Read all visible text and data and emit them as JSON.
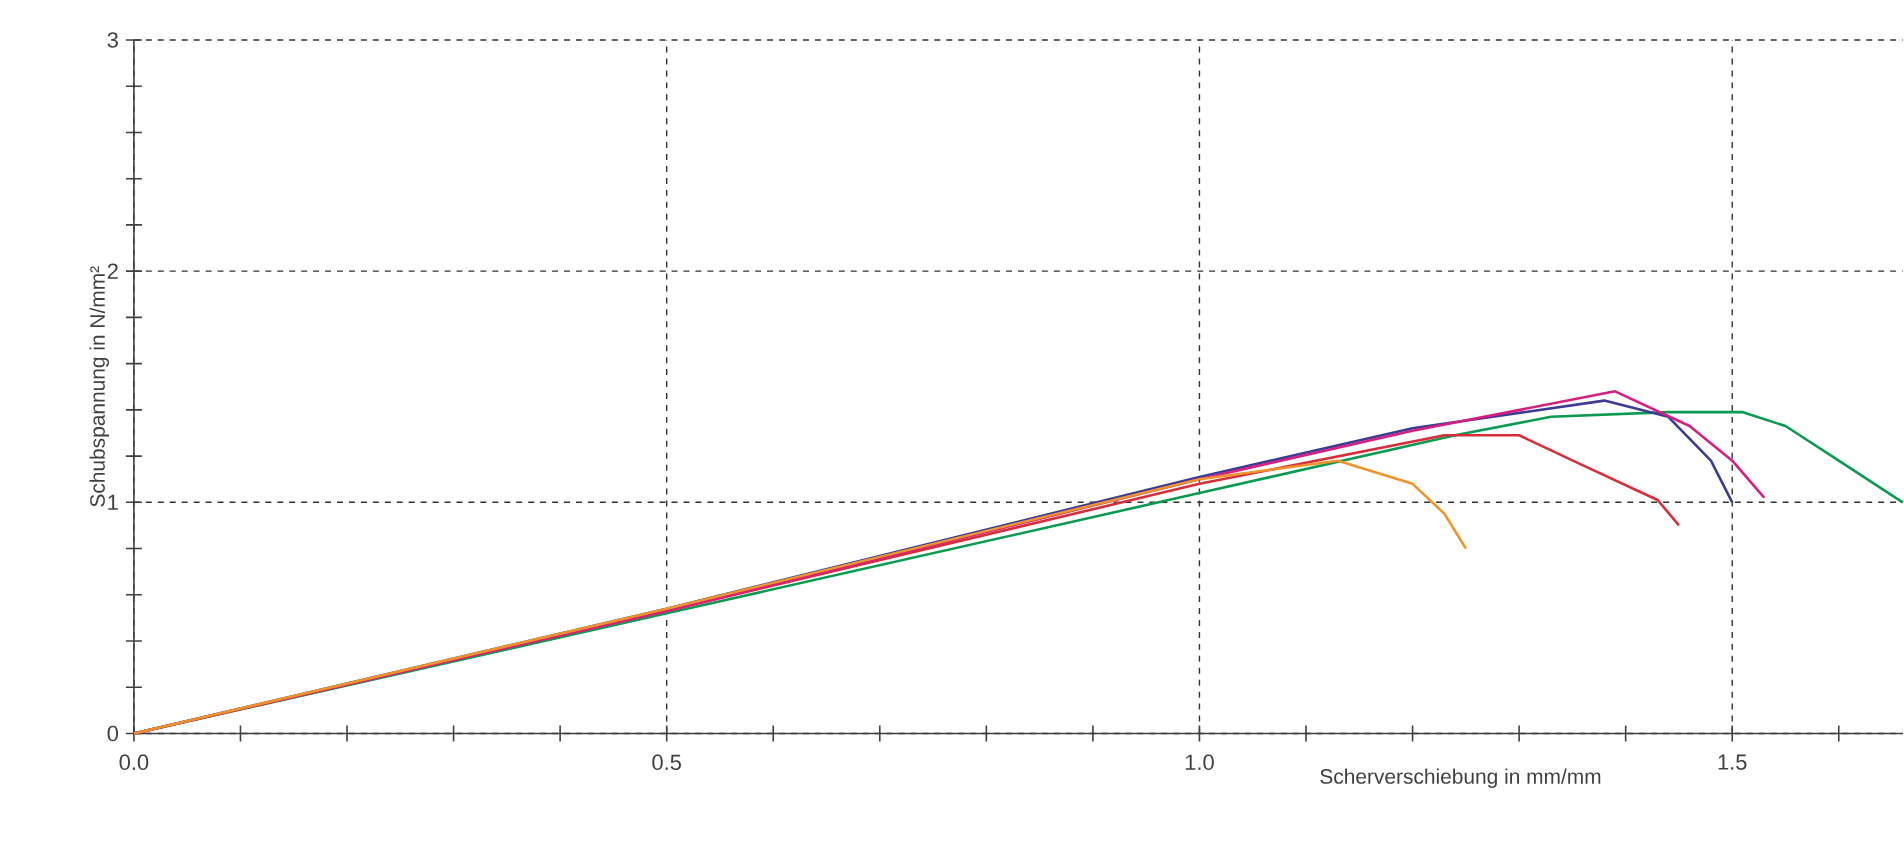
{
  "chart_data": {
    "type": "line",
    "xlabel": "Scherverschiebung in mm/mm",
    "ylabel": "Schubspannung in N/mm²",
    "xlim": [
      0,
      1.66
    ],
    "ylim": [
      0,
      3
    ],
    "xticks": [
      {
        "value": 0,
        "label": "0.0"
      },
      {
        "value": 0.1,
        "label": null
      },
      {
        "value": 0.2,
        "label": null
      },
      {
        "value": 0.3,
        "label": null
      },
      {
        "value": 0.4,
        "label": null
      },
      {
        "value": 0.5,
        "label": "0.5"
      },
      {
        "value": 0.6,
        "label": null
      },
      {
        "value": 0.7,
        "label": null
      },
      {
        "value": 0.8,
        "label": null
      },
      {
        "value": 0.9,
        "label": null
      },
      {
        "value": 1.0,
        "label": "1.0"
      },
      {
        "value": 1.1,
        "label": null
      },
      {
        "value": 1.2,
        "label": null
      },
      {
        "value": 1.3,
        "label": null
      },
      {
        "value": 1.4,
        "label": null
      },
      {
        "value": 1.5,
        "label": "1.5"
      },
      {
        "value": 1.6,
        "label": null
      }
    ],
    "yticks": [
      0,
      {
        "value": 0.2,
        "label": null
      },
      {
        "value": 0.4,
        "label": null
      },
      {
        "value": 0.6,
        "label": null
      },
      {
        "value": 0.8,
        "label": null
      },
      1,
      {
        "value": 1.2,
        "label": null
      },
      {
        "value": 1.4,
        "label": null
      },
      {
        "value": 1.6,
        "label": null
      },
      {
        "value": 1.8,
        "label": null
      },
      2,
      {
        "value": 2.2,
        "label": null
      },
      {
        "value": 2.4,
        "label": null
      },
      {
        "value": 2.6,
        "label": null
      },
      {
        "value": 2.8,
        "label": null
      },
      3
    ],
    "grid": true,
    "line_style": "solid",
    "marker": "none",
    "series": [
      {
        "color": "#0a9a50",
        "x": [
          0,
          0.5,
          1.0,
          1.24,
          1.33,
          1.44,
          1.51,
          1.55,
          1.6,
          1.66
        ],
        "values": [
          0,
          0.52,
          1.04,
          1.29,
          1.37,
          1.39,
          1.39,
          1.33,
          1.18,
          1.0
        ]
      },
      {
        "color": "#d62f3a",
        "x": [
          0,
          0.5,
          1.0,
          1.23,
          1.3,
          1.36,
          1.43,
          1.45
        ],
        "values": [
          0,
          0.53,
          1.08,
          1.29,
          1.29,
          1.16,
          1.01,
          0.9
        ]
      },
      {
        "color": "#3c3c96",
        "x": [
          0,
          0.5,
          1.0,
          1.2,
          1.38,
          1.44,
          1.48,
          1.5
        ],
        "values": [
          0,
          0.54,
          1.11,
          1.32,
          1.44,
          1.37,
          1.18,
          1.0
        ]
      },
      {
        "color": "#d6207f",
        "x": [
          0,
          0.5,
          1.0,
          1.2,
          1.39,
          1.46,
          1.5,
          1.53
        ],
        "values": [
          0,
          0.53,
          1.1,
          1.31,
          1.48,
          1.33,
          1.18,
          1.02
        ]
      },
      {
        "color": "#f0932a",
        "x": [
          0,
          0.5,
          1.0,
          1.13,
          1.2,
          1.23,
          1.25
        ],
        "values": [
          0,
          0.54,
          1.1,
          1.18,
          1.08,
          0.95,
          0.8
        ]
      }
    ]
  }
}
